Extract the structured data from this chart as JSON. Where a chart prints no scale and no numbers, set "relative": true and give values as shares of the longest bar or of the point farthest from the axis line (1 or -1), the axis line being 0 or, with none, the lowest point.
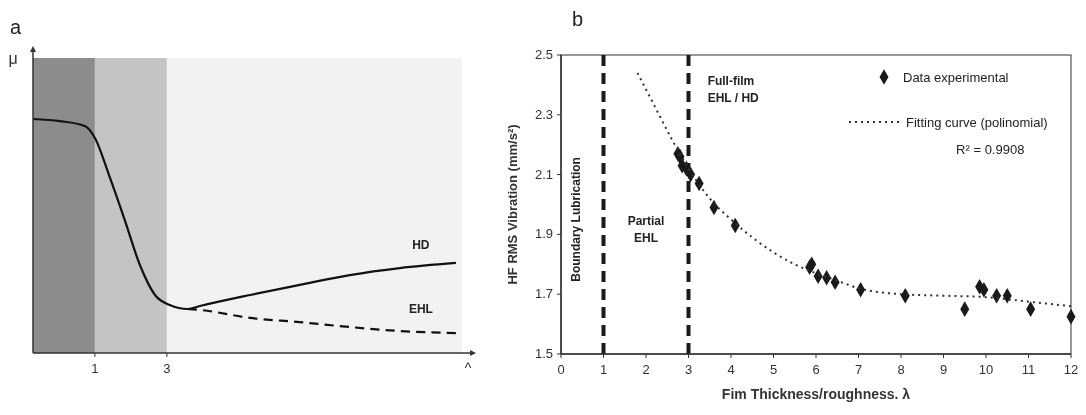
{
  "chart_data": [
    {
      "type": "line",
      "title": "a",
      "ylabel": "μ",
      "xlabel": "^",
      "relative": true,
      "legend": false,
      "xlim": [
        -0.72,
        11.2
      ],
      "xticks": [
        1,
        3
      ],
      "bands": [
        {
          "axis": "x",
          "from": -0.72,
          "to": 1,
          "color": "#8c8c8c"
        },
        {
          "axis": "x",
          "from": 1,
          "to": 3,
          "color": "#c4c4c4"
        },
        {
          "axis": "x",
          "from": 3,
          "to": 11.2,
          "color": "#f2f2f2"
        }
      ],
      "series": [
        {
          "name": "HD",
          "color": "#111111",
          "line_style": "solid",
          "x": [
            -0.72,
            0.03,
            0.72,
            1.0,
            1.42,
            1.83,
            2.25,
            2.67,
            3.08,
            3.58,
            3.92,
            5.31,
            6.69,
            8.08,
            9.47,
            11.03
          ],
          "values": [
            1.0,
            0.991,
            0.97,
            0.919,
            0.748,
            0.568,
            0.376,
            0.248,
            0.205,
            0.188,
            0.201,
            0.248,
            0.291,
            0.333,
            0.363,
            0.385
          ]
        },
        {
          "name": "EHL",
          "color": "#111111",
          "line_style": "dashed",
          "x": [
            3.58,
            3.92,
            5.31,
            6.69,
            8.08,
            9.47,
            11.03
          ],
          "values": [
            0.188,
            0.184,
            0.15,
            0.132,
            0.111,
            0.094,
            0.085
          ]
        }
      ]
    },
    {
      "type": "scatter",
      "title": "b",
      "xlabel": "Fim Thickness/roughness. λ",
      "ylabel": "HF RMS Vibration (mm/s²)",
      "legend": "top right",
      "xlim": [
        0,
        12
      ],
      "xticks": [
        0,
        1,
        2,
        3,
        4,
        5,
        6,
        7,
        8,
        9,
        10,
        11,
        12
      ],
      "ylim": [
        1.5,
        2.5
      ],
      "yticks": [
        {
          "value": 1.5,
          "label": "1.5"
        },
        {
          "value": 1.7,
          "label": "1.7"
        },
        {
          "value": 1.9,
          "label": "1.9"
        },
        {
          "value": 2.1,
          "label": "2.1"
        },
        {
          "value": 2.3,
          "label": "2.3"
        },
        {
          "value": 2.5,
          "label": "2.5"
        }
      ],
      "ref_lines": [
        {
          "axis": "x",
          "value": 1,
          "color": "#1a1a1a",
          "line_style": "dashed"
        },
        {
          "axis": "x",
          "value": 3,
          "color": "#1a1a1a",
          "line_style": "dashed"
        }
      ],
      "annotations": [
        "Boundary Lubrication",
        "Partial EHL",
        "Full-film EHL / HD",
        "R² = 0.9908"
      ],
      "series": [
        {
          "name": "Data experimental",
          "marker": "diamond",
          "color": "#1a1a1a",
          "x": [
            2.75,
            2.8,
            2.85,
            2.95,
            3.05,
            3.25,
            3.6,
            4.1,
            5.85,
            5.9,
            6.05,
            6.25,
            6.45,
            7.05,
            8.1,
            9.5,
            9.85,
            9.95,
            10.25,
            10.5,
            11.05,
            12.0
          ],
          "values": [
            2.17,
            2.16,
            2.13,
            2.12,
            2.1,
            2.07,
            1.99,
            1.93,
            1.79,
            1.8,
            1.76,
            1.755,
            1.74,
            1.715,
            1.695,
            1.65,
            1.725,
            1.715,
            1.695,
            1.695,
            1.65,
            1.625
          ]
        },
        {
          "name": "Fitting curve (polinomial)",
          "type": "line",
          "line_style": "dotted",
          "color": "#333333",
          "x": [
            1.8,
            2.2,
            2.6,
            3,
            3.5,
            4,
            4.5,
            5,
            5.5,
            6,
            6.5,
            7,
            8,
            9,
            10,
            11,
            12
          ],
          "values": [
            2.44,
            2.33,
            2.22,
            2.12,
            2.02,
            1.95,
            1.89,
            1.84,
            1.8,
            1.77,
            1.745,
            1.72,
            1.7,
            1.695,
            1.69,
            1.675,
            1.66
          ]
        }
      ]
    }
  ]
}
